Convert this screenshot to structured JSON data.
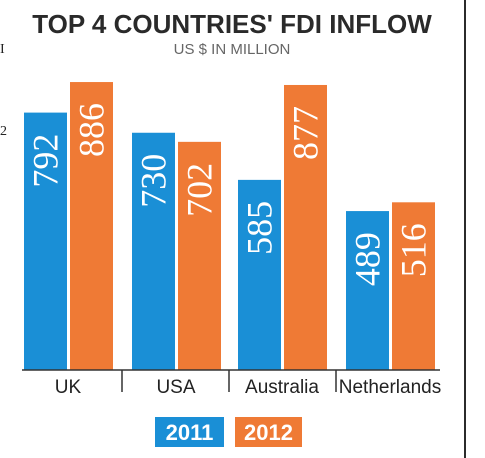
{
  "chart_data": {
    "type": "bar",
    "title": "TOP 4 COUNTRIES' FDI INFLOW",
    "subtitle": "US $ IN MILLION",
    "categories": [
      "UK",
      "USA",
      "Australia",
      "Netherlands"
    ],
    "series": [
      {
        "name": "2011",
        "values": [
          792,
          730,
          585,
          489
        ],
        "color": "#1a8fd6"
      },
      {
        "name": "2012",
        "values": [
          886,
          702,
          877,
          516
        ],
        "color": "#ef7a35"
      }
    ],
    "ylim": [
      0,
      1000
    ],
    "grid": false,
    "legend_position": "bottom"
  },
  "left_fragment": [
    "I",
    "2"
  ]
}
